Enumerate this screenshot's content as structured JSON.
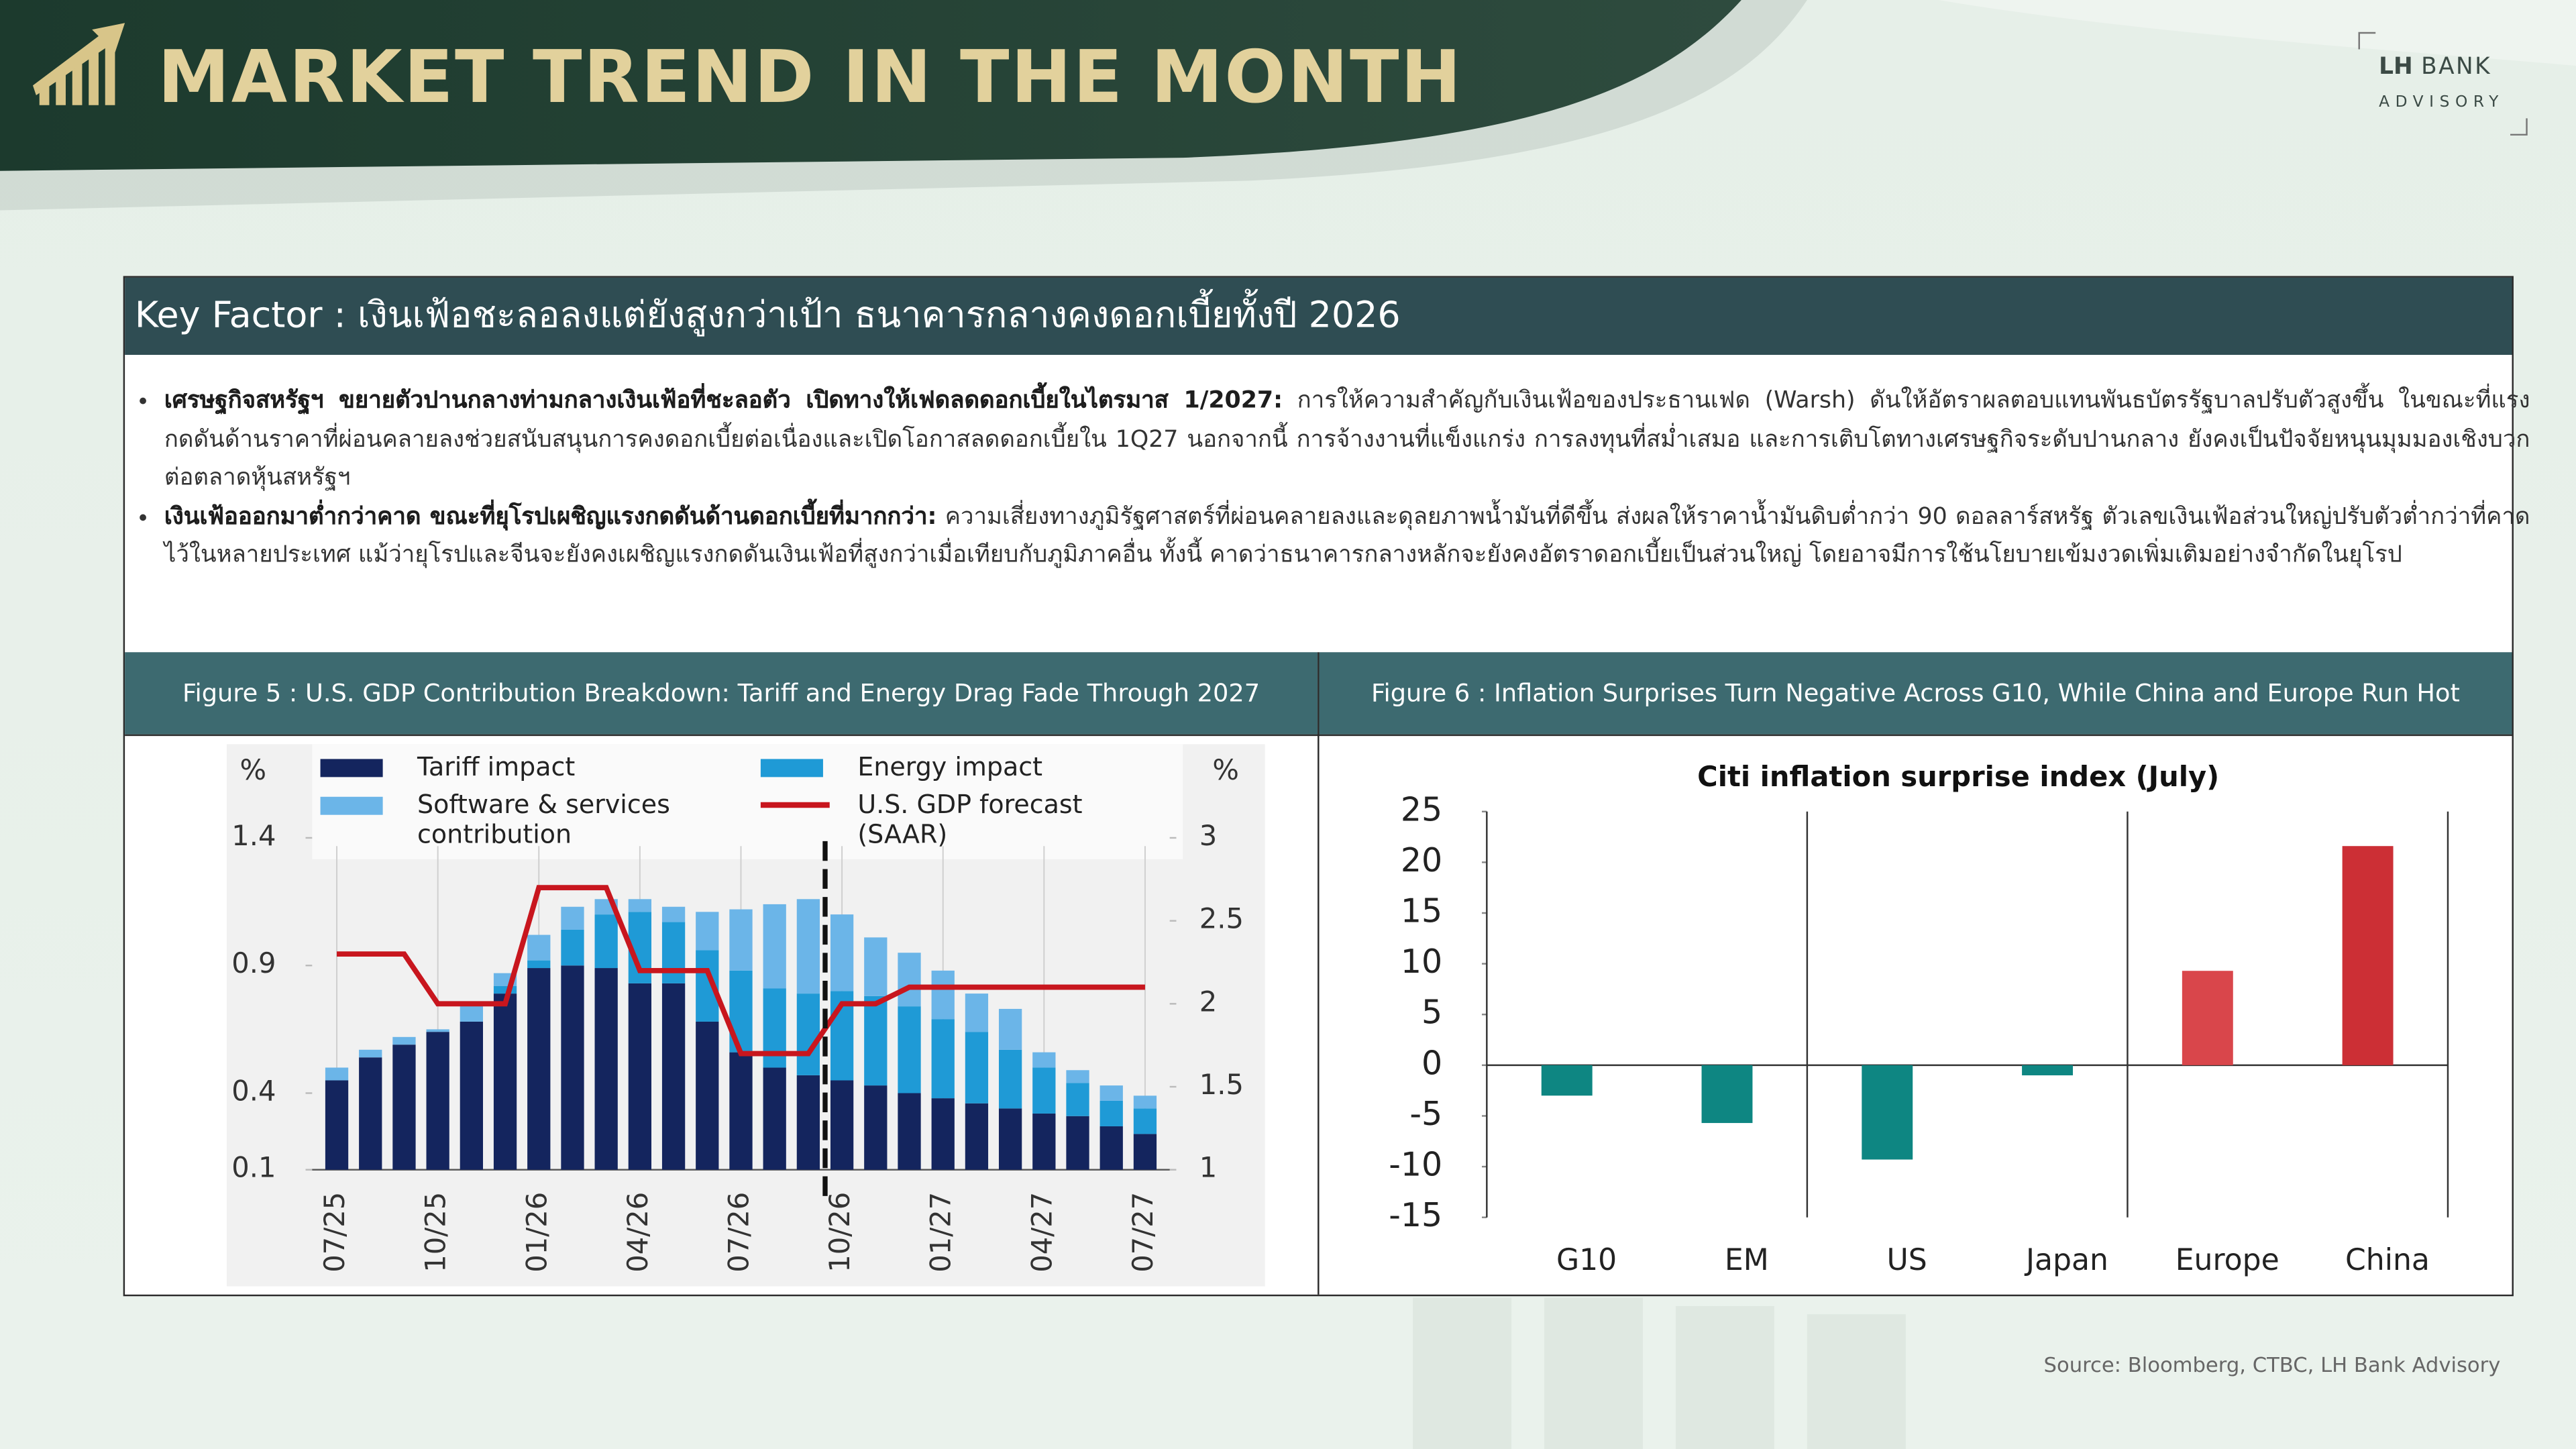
{
  "header": {
    "title": "MARKET TREND IN THE MONTH",
    "logo_brand": "LH",
    "logo_name": "BANK",
    "logo_sub": "ADVISORY"
  },
  "key_factor": {
    "title": "Key Factor : เงินเฟ้อชะลอลงแต่ยังสูงกว่าเป้า ธนาคารกลางคงดอกเบี้ยทั้งปี 2026",
    "bullets": [
      {
        "bold": "เศรษฐกิจสหรัฐฯ ขยายตัวปานกลางท่ามกลางเงินเฟ้อที่ชะลอตัว เปิดทางให้เฟดลดดอกเบี้ยในไตรมาส 1/2027:",
        "text": "การให้ความสำคัญกับเงินเฟ้อของประธานเฟด (Warsh) ดันให้อัตราผลตอบแทนพันธบัตรรัฐบาลปรับตัวสูงขึ้น ในขณะที่แรงกดดันด้านราคาที่ผ่อนคลายลงช่วยสนับสนุนการคงดอกเบี้ยต่อเนื่องและเปิดโอกาสลดดอกเบี้ยใน 1Q27  นอกจากนี้ การจ้างงานที่แข็งแกร่ง การลงทุนที่สม่ำเสมอ และการเติบโตทางเศรษฐกิจระดับปานกลาง ยังคงเป็นปัจจัยหนุนมุมมองเชิงบวกต่อตลาดหุ้นสหรัฐฯ"
      },
      {
        "bold": "เงินเฟ้อออกมาต่ำกว่าคาด ขณะที่ยุโรปเผชิญแรงกดดันด้านดอกเบี้ยที่มากกว่า:",
        "text": "ความเสี่ยงทางภูมิรัฐศาสตร์ที่ผ่อนคลายลงและดุลยภาพน้ำมันที่ดีขึ้น ส่งผลให้ราคาน้ำมันดิบต่ำกว่า 90 ดอลลาร์สหรัฐ ตัวเลขเงินเฟ้อส่วนใหญ่ปรับตัวต่ำกว่าที่คาดไว้ในหลายประเทศ แม้ว่ายุโรปและจีนจะยังคงเผชิญแรงกดดันเงินเฟ้อที่สูงกว่าเมื่อเทียบกับภูมิภาคอื่น ทั้งนี้ คาดว่าธนาคารกลางหลักจะยังคงอัตราดอกเบี้ยเป็นส่วนใหญ่ โดยอาจมีการใช้นโยบายเข้มงวดเพิ่มเติมอย่างจำกัดในยุโรป"
      }
    ]
  },
  "chart_data": [
    {
      "type": "bar",
      "stacked": true,
      "figure_title": "Figure 5 : U.S. GDP Contribution Breakdown: Tariff and Energy Drag Fade Through 2027",
      "y_unit": "%",
      "y2_unit": "%",
      "categories": [
        "07/25",
        null,
        null,
        "10/25",
        null,
        null,
        "01/26",
        null,
        null,
        "04/26",
        null,
        null,
        "07/26",
        null,
        null,
        "10/26",
        null,
        null,
        "01/27",
        null,
        null,
        "04/27",
        null,
        null,
        "07/27"
      ],
      "series": [
        {
          "name": "Tariff impact",
          "color": "#14255e",
          "values": [
            0.45,
            0.54,
            0.59,
            0.64,
            0.68,
            0.79,
            0.89,
            0.9,
            0.89,
            0.83,
            0.83,
            0.68,
            0.56,
            0.5,
            0.47,
            0.45,
            0.43,
            0.4,
            0.38,
            0.36,
            0.34,
            0.32,
            0.31,
            0.27,
            0.24
          ]
        },
        {
          "name": "Energy impact",
          "color": "#1f9ad6",
          "values": [
            0,
            0,
            0,
            0,
            0,
            0.03,
            0.03,
            0.14,
            0.21,
            0.28,
            0.24,
            0.28,
            0.32,
            0.31,
            0.32,
            0.35,
            0.35,
            0.34,
            0.31,
            0.28,
            0.23,
            0.18,
            0.13,
            0.1,
            0.1
          ]
        },
        {
          "name": "Software & services contribution",
          "color": "#6bb5e8",
          "values": [
            0.05,
            0.03,
            0.03,
            0.01,
            0.08,
            0.05,
            0.1,
            0.09,
            0.06,
            0.05,
            0.06,
            0.15,
            0.24,
            0.33,
            0.37,
            0.3,
            0.23,
            0.21,
            0.19,
            0.15,
            0.16,
            0.06,
            0.05,
            0.06,
            0.05
          ]
        },
        {
          "name": "U.S. GDP forecast (SAAR)",
          "color": "#c8161e",
          "type": "line",
          "axis": "y2",
          "values": [
            2.3,
            2.3,
            2.3,
            2.0,
            2.0,
            2.0,
            2.7,
            2.7,
            2.7,
            2.2,
            2.2,
            2.2,
            1.7,
            1.7,
            1.7,
            2.0,
            2.0,
            2.1,
            2.1,
            2.1,
            2.1,
            2.1,
            2.1,
            2.1,
            2.1
          ]
        }
      ],
      "ylim": [
        0.1,
        1.4
      ],
      "yticks": [
        0.1,
        0.4,
        0.9,
        1.4
      ],
      "y2lim": [
        1,
        3
      ],
      "y2ticks": [
        1,
        1.5,
        2,
        2.5,
        3
      ]
    },
    {
      "type": "bar",
      "figure_title": "Figure 6 : Inflation Surprises Turn Negative Across G10, While China and Europe Run Hot",
      "title": "Citi inflation surprise index (July)",
      "categories": [
        "G10",
        "EM",
        "US",
        "Japan",
        "Europe",
        "China"
      ],
      "values": [
        -3.0,
        -5.7,
        -9.3,
        -1.0,
        9.3,
        21.6
      ],
      "colors": [
        "#0e8682",
        "#0e8682",
        "#0e8682",
        "#0e8682",
        "#d9464b",
        "#cc2f35"
      ],
      "ylim": [
        -15,
        25
      ],
      "yticks": [
        -15,
        -10,
        -5,
        0,
        5,
        10,
        15,
        20,
        25
      ]
    }
  ],
  "source": "Source: Bloomberg, CTBC, LH Bank Advisory"
}
